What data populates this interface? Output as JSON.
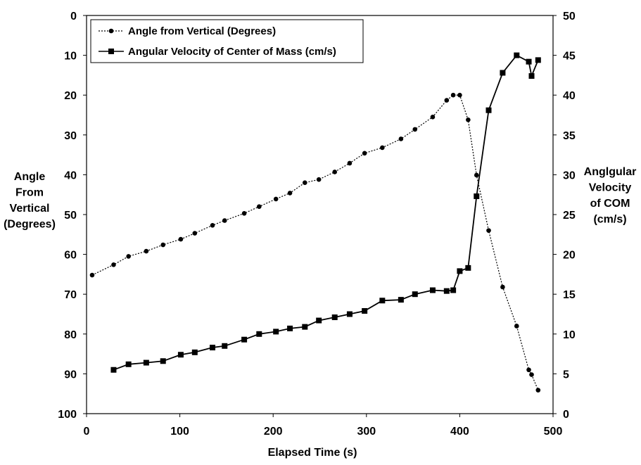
{
  "chart_data": {
    "type": "line",
    "title": "",
    "xlabel": "Elapsed Time (s)",
    "ylabel_left": [
      "Angle",
      "From",
      "Vertical",
      "(Degrees)"
    ],
    "ylabel_right": [
      "Anglgular",
      "Velocity",
      "of COM",
      "(cm/s)"
    ],
    "xlim": [
      0,
      500
    ],
    "xticks": [
      0,
      100,
      200,
      300,
      400,
      500
    ],
    "ylim_left": [
      0,
      100
    ],
    "ylim_left_inverted": true,
    "yticks_left": [
      0,
      10,
      20,
      30,
      40,
      50,
      60,
      70,
      80,
      90,
      100
    ],
    "ylim_right": [
      0,
      50
    ],
    "yticks_right": [
      0,
      5,
      10,
      15,
      20,
      25,
      30,
      35,
      40,
      45,
      50
    ],
    "grid": false,
    "legend_position": "top-left",
    "series": [
      {
        "name": "Angle from Vertical (Degrees)",
        "axis": "left",
        "line_style": "dotted",
        "marker": "circle",
        "color": "#000000",
        "x": [
          6,
          29,
          45,
          64,
          82,
          101,
          116,
          135,
          148,
          169,
          185,
          203,
          218,
          234,
          249,
          266,
          282,
          298,
          317,
          337,
          352,
          371,
          386,
          393,
          400,
          409,
          418,
          431,
          446,
          461,
          474,
          477,
          484
        ],
        "y": [
          65.2,
          62.6,
          60.5,
          59.2,
          57.6,
          56.2,
          54.7,
          52.7,
          51.5,
          49.7,
          48.0,
          46.1,
          44.6,
          42.0,
          41.2,
          39.3,
          37.1,
          34.6,
          33.2,
          31.0,
          28.6,
          25.5,
          21.3,
          20.0,
          20.0,
          26.2,
          40.1,
          54.0,
          68.2,
          78.0,
          89.0,
          90.2,
          94.1
        ]
      },
      {
        "name": "Angular Velocity of Center of Mass (cm/s)",
        "axis": "right",
        "line_style": "solid",
        "marker": "square",
        "color": "#000000",
        "x": [
          29,
          45,
          64,
          82,
          101,
          116,
          135,
          148,
          169,
          185,
          203,
          218,
          234,
          249,
          266,
          282,
          298,
          317,
          337,
          352,
          371,
          386,
          393,
          400,
          409,
          418,
          431,
          446,
          461,
          474,
          477,
          484
        ],
        "y": [
          5.5,
          6.2,
          6.4,
          6.6,
          7.4,
          7.7,
          8.3,
          8.5,
          9.3,
          10.0,
          10.3,
          10.7,
          10.9,
          11.7,
          12.1,
          12.5,
          12.9,
          14.2,
          14.3,
          15.0,
          15.5,
          15.4,
          15.5,
          17.9,
          18.3,
          27.3,
          38.1,
          42.8,
          45.0,
          44.2,
          42.4,
          44.4
        ]
      }
    ]
  }
}
